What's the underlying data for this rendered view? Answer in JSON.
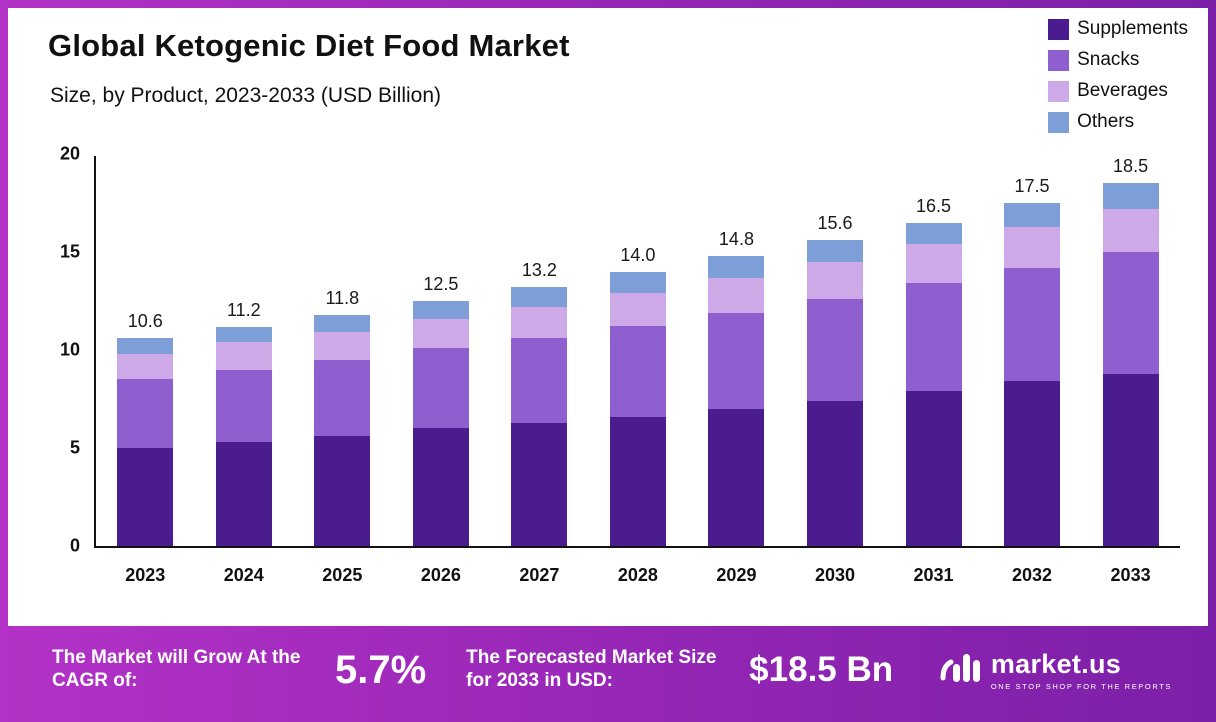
{
  "title": "Global Ketogenic Diet Food Market",
  "subtitle": "Size, by Product, 2023-2033 (USD Billion)",
  "colors": {
    "supplements": "#4a1c8e",
    "snacks": "#8f5fd0",
    "beverages": "#cda9e8",
    "others": "#7e9ed8",
    "axis": "#111111"
  },
  "legend": [
    {
      "label": "Supplements",
      "color": "#4a1c8e"
    },
    {
      "label": "Snacks",
      "color": "#8f5fd0"
    },
    {
      "label": "Beverages",
      "color": "#cda9e8"
    },
    {
      "label": "Others",
      "color": "#7e9ed8"
    }
  ],
  "chart_data": {
    "type": "bar",
    "stacked": true,
    "categories": [
      "2023",
      "2024",
      "2025",
      "2026",
      "2027",
      "2028",
      "2029",
      "2030",
      "2031",
      "2032",
      "2033"
    ],
    "series": [
      {
        "name": "Supplements",
        "color": "#4a1c8e",
        "values": [
          5.0,
          5.3,
          5.6,
          6.0,
          6.3,
          6.6,
          7.0,
          7.4,
          7.9,
          8.4,
          8.8
        ]
      },
      {
        "name": "Snacks",
        "color": "#8f5fd0",
        "values": [
          3.5,
          3.7,
          3.9,
          4.1,
          4.3,
          4.6,
          4.9,
          5.2,
          5.5,
          5.8,
          6.2
        ]
      },
      {
        "name": "Beverages",
        "color": "#cda9e8",
        "values": [
          1.3,
          1.4,
          1.4,
          1.5,
          1.6,
          1.7,
          1.8,
          1.9,
          2.0,
          2.1,
          2.2
        ]
      },
      {
        "name": "Others",
        "color": "#7e9ed8",
        "values": [
          0.8,
          0.8,
          0.9,
          0.9,
          1.0,
          1.1,
          1.1,
          1.1,
          1.1,
          1.2,
          1.3
        ]
      }
    ],
    "totals": [
      "10.6",
      "11.2",
      "11.8",
      "12.5",
      "13.2",
      "14.0",
      "14.8",
      "15.6",
      "16.5",
      "17.5",
      "18.5"
    ],
    "title": "Global Ketogenic Diet Food Market",
    "subtitle": "Size, by Product, 2023-2033 (USD Billion)",
    "xlabel": "",
    "ylabel": "",
    "ylim": [
      0,
      20
    ],
    "yticks": [
      "0",
      "5",
      "10",
      "15",
      "20"
    ],
    "grid": false,
    "legend_position": "top-right"
  },
  "banner": {
    "cagr_label": "The Market will Grow At the CAGR of:",
    "cagr_value": "5.7%",
    "forecast_label": "The Forecasted Market Size for 2033 in USD:",
    "forecast_value": "$18.5 Bn",
    "logo_name": "market.us",
    "logo_tagline": "ONE STOP SHOP FOR THE REPORTS"
  }
}
